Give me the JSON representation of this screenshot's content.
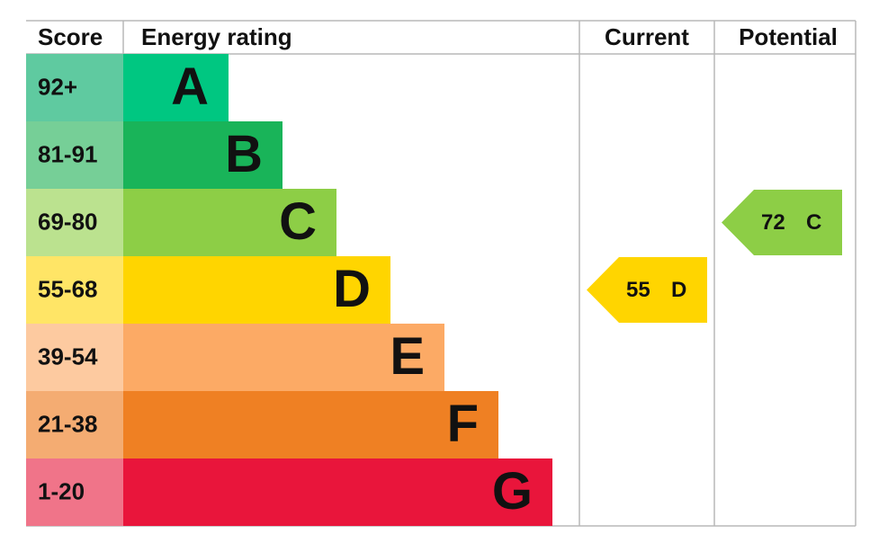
{
  "header": {
    "score": "Score",
    "energy_rating": "Energy rating",
    "current": "Current",
    "potential": "Potential"
  },
  "rows": [
    {
      "score": "92+",
      "letter": "A",
      "color": "#00c781",
      "score_color": "#5fcaa0"
    },
    {
      "score": "81-91",
      "letter": "B",
      "color": "#19b459",
      "score_color": "#76cf97"
    },
    {
      "score": "69-80",
      "letter": "C",
      "color": "#8dce46",
      "score_color": "#bbe28f"
    },
    {
      "score": "55-68",
      "letter": "D",
      "color": "#ffd500",
      "score_color": "#ffe566"
    },
    {
      "score": "39-54",
      "letter": "E",
      "color": "#fcaa65",
      "score_color": "#fdcaa0"
    },
    {
      "score": "21-38",
      "letter": "F",
      "color": "#ef8023",
      "score_color": "#f4ac72"
    },
    {
      "score": "1-20",
      "letter": "G",
      "color": "#e9153b",
      "score_color": "#f07489"
    }
  ],
  "current": {
    "value": 55,
    "letter": "D"
  },
  "potential": {
    "value": 72,
    "letter": "C"
  }
}
